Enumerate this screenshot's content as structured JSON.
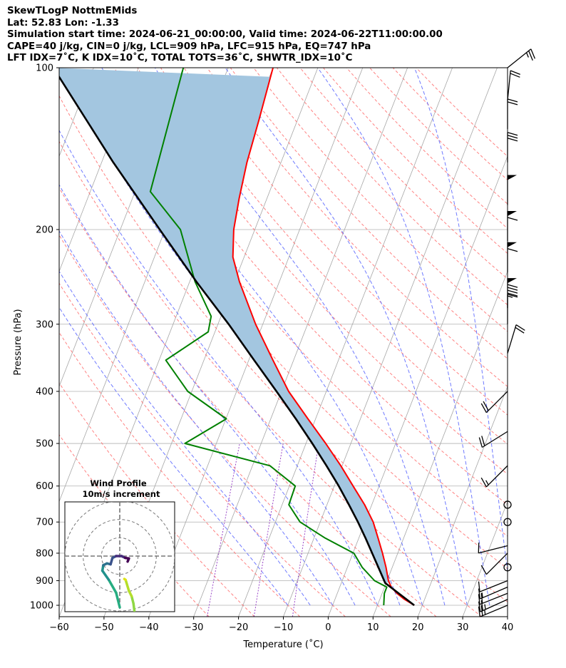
{
  "title_lines": {
    "line1": "SkewTLogP NottmEMids",
    "line2": "Lat: 52.83   Lon: -1.33",
    "line3": "Simulation start time: 2024-06-21_00:00:00, Valid time: 2024-06-22T11:00:00.00",
    "line4": "CAPE=40 j/kg, CIN=0 j/kg, LCL=909 hPa, LFC=915 hPa, EQ=747 hPa",
    "line5": "LFT IDX=7˚C, K IDX=10˚C, TOTAL TOTS=36˚C, SHWTR_IDX=10˚C"
  },
  "chart_data": {
    "type": "skewt",
    "xlabel": "Temperature (˚C)",
    "ylabel": "Pressure (hPa)",
    "xlim": [
      -60,
      40
    ],
    "ylim": [
      1050,
      100
    ],
    "x_ticks": [
      -60,
      -50,
      -40,
      -30,
      -20,
      -10,
      0,
      10,
      20,
      30,
      40
    ],
    "x_tick_labels": [
      "−60",
      "−50",
      "−40",
      "−30",
      "−20",
      "−10",
      "0",
      "10",
      "20",
      "30",
      "40"
    ],
    "y_ticks": [
      1000,
      900,
      800,
      700,
      600,
      500,
      400,
      300,
      200,
      100
    ],
    "y_tick_labels": [
      "1000",
      "900",
      "800",
      "700",
      "600",
      "500",
      "400",
      "300",
      "200",
      "100"
    ],
    "colors": {
      "temperature": "#ff0000",
      "dewpoint": "#008000",
      "parcel": "#000000",
      "cape_fill": "#a3c6e0",
      "dry_adiabat": "#ff6b6b",
      "moist_adiabat": "#5f6bff",
      "mixing_ratio": "#9a45c8",
      "isotherm": "#a6a6a6"
    },
    "temperature_profile": [
      {
        "p": 1000,
        "t": 18.2
      },
      {
        "p": 975,
        "t": 15.5
      },
      {
        "p": 950,
        "t": 13.3
      },
      {
        "p": 925,
        "t": 11.5
      },
      {
        "p": 900,
        "t": 10.3
      },
      {
        "p": 850,
        "t": 8.6
      },
      {
        "p": 800,
        "t": 6.6
      },
      {
        "p": 750,
        "t": 4.3
      },
      {
        "p": 700,
        "t": 1.8
      },
      {
        "p": 650,
        "t": -1.6
      },
      {
        "p": 600,
        "t": -5.8
      },
      {
        "p": 550,
        "t": -10.3
      },
      {
        "p": 500,
        "t": -15.6
      },
      {
        "p": 450,
        "t": -21.7
      },
      {
        "p": 400,
        "t": -28.4
      },
      {
        "p": 350,
        "t": -34.6
      },
      {
        "p": 300,
        "t": -41.6
      },
      {
        "p": 250,
        "t": -48.9
      },
      {
        "p": 225,
        "t": -52.5
      },
      {
        "p": 200,
        "t": -54.7
      },
      {
        "p": 175,
        "t": -56.2
      },
      {
        "p": 150,
        "t": -57.6
      },
      {
        "p": 125,
        "t": -58.6
      },
      {
        "p": 100,
        "t": -60.0
      }
    ],
    "dewpoint_profile": [
      {
        "p": 1000,
        "t": 11.4
      },
      {
        "p": 950,
        "t": 10.5
      },
      {
        "p": 925,
        "t": 10.5
      },
      {
        "p": 900,
        "t": 7.2
      },
      {
        "p": 850,
        "t": 3.3
      },
      {
        "p": 800,
        "t": 0.2
      },
      {
        "p": 750,
        "t": -7.5
      },
      {
        "p": 700,
        "t": -14.5
      },
      {
        "p": 650,
        "t": -18.5
      },
      {
        "p": 600,
        "t": -18.7
      },
      {
        "p": 550,
        "t": -26.1
      },
      {
        "p": 500,
        "t": -47.0
      },
      {
        "p": 450,
        "t": -39.9
      },
      {
        "p": 400,
        "t": -50.9
      },
      {
        "p": 350,
        "t": -58.5
      },
      {
        "p": 310,
        "t": -51.5
      },
      {
        "p": 290,
        "t": -52.2
      },
      {
        "p": 250,
        "t": -58.8
      },
      {
        "p": 200,
        "t": -66.6
      },
      {
        "p": 170,
        "t": -76.6
      },
      {
        "p": 100,
        "t": -80.0
      }
    ],
    "parcel_profile": [
      {
        "p": 1000,
        "t": 18.2
      },
      {
        "p": 909,
        "t": 9.8
      },
      {
        "p": 850,
        "t": 6.9
      },
      {
        "p": 800,
        "t": 4.3
      },
      {
        "p": 750,
        "t": 1.5
      },
      {
        "p": 700,
        "t": -1.6
      },
      {
        "p": 650,
        "t": -5.1
      },
      {
        "p": 600,
        "t": -9.0
      },
      {
        "p": 550,
        "t": -13.5
      },
      {
        "p": 500,
        "t": -18.6
      },
      {
        "p": 450,
        "t": -24.4
      },
      {
        "p": 400,
        "t": -31.1
      },
      {
        "p": 350,
        "t": -38.8
      },
      {
        "p": 300,
        "t": -47.6
      },
      {
        "p": 250,
        "t": -58.5
      },
      {
        "p": 200,
        "t": -71.2
      },
      {
        "p": 150,
        "t": -87.4
      },
      {
        "p": 100,
        "t": -109.0
      }
    ],
    "wind_barbs": [
      {
        "p": 1000,
        "u": 12,
        "v": 5
      },
      {
        "p": 975,
        "u": 11,
        "v": 5
      },
      {
        "p": 950,
        "u": 10,
        "v": 4
      },
      {
        "p": 925,
        "u": 7,
        "v": 3
      },
      {
        "p": 900,
        "u": 5,
        "v": 2
      },
      {
        "p": 850,
        "u": 2,
        "v": 1
      },
      {
        "p": 800,
        "u": 3,
        "v": 3
      },
      {
        "p": 775,
        "u": 4,
        "v": 1
      },
      {
        "p": 700,
        "u": 0,
        "v": 0
      },
      {
        "p": 650,
        "u": 0,
        "v": 0
      },
      {
        "p": 550,
        "u": 5,
        "v": 5
      },
      {
        "p": 475,
        "u": 8,
        "v": 5
      },
      {
        "p": 400,
        "u": 8,
        "v": 8
      },
      {
        "p": 340,
        "u": -3,
        "v": -10
      },
      {
        "p": 300,
        "u": 0,
        "v": -5
      },
      {
        "p": 280,
        "u": 0,
        "v": -50
      },
      {
        "p": 240,
        "u": 0,
        "v": -30
      },
      {
        "p": 210,
        "u": 0,
        "v": -30
      },
      {
        "p": 180,
        "u": 0,
        "v": -25
      },
      {
        "p": 150,
        "u": 0,
        "v": -15
      },
      {
        "p": 130,
        "u": 0,
        "v": -10
      },
      {
        "p": 115,
        "u": -1,
        "v": -10
      },
      {
        "p": 100,
        "u": -10,
        "v": -8
      }
    ],
    "hodograph": {
      "title": "Wind Profile",
      "subtitle": "10m/s increment",
      "range": 30,
      "rings": [
        10,
        20,
        30
      ],
      "points": [
        {
          "u": 8,
          "v": -30
        },
        {
          "u": 7.5,
          "v": -26
        },
        {
          "u": 6.5,
          "v": -22
        },
        {
          "u": 5,
          "v": -19
        },
        {
          "u": 3.2,
          "v": -13
        },
        {
          "u": 2.5,
          "v": -12.5
        },
        {
          "u": 0,
          "v": -28
        },
        {
          "u": -2,
          "v": -20
        },
        {
          "u": -6,
          "v": -13
        },
        {
          "u": -9.5,
          "v": -8
        },
        {
          "u": -9,
          "v": -5
        },
        {
          "u": -7,
          "v": -4
        },
        {
          "u": -5,
          "v": -4.5
        },
        {
          "u": -4,
          "v": -1
        },
        {
          "u": -2,
          "v": 0
        },
        {
          "u": 1,
          "v": 0
        },
        {
          "u": 3,
          "v": -1
        },
        {
          "u": 5,
          "v": -1.3
        },
        {
          "u": 4.3,
          "v": -3
        }
      ]
    }
  }
}
